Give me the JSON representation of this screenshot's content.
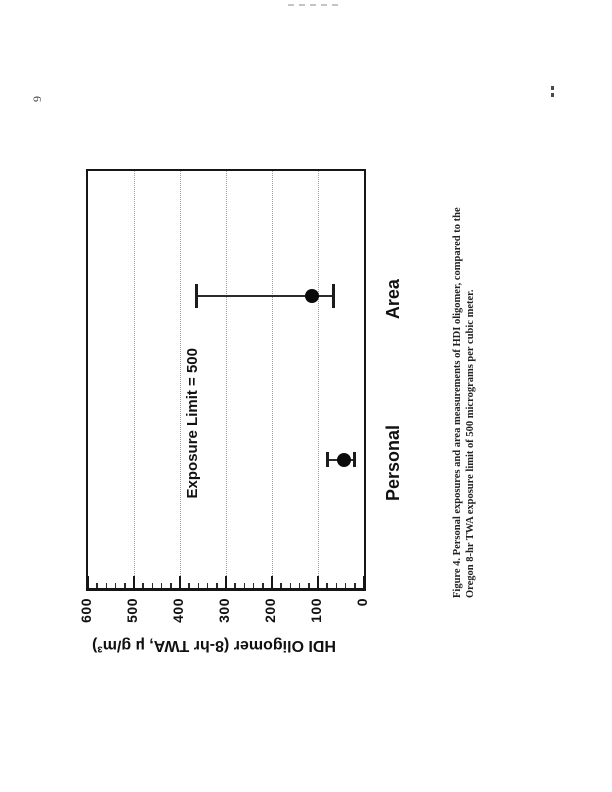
{
  "page": {
    "page_number": "9",
    "caption_line1": "Figure 4.  Personal exposures and area measurements of HDI oligomer, compared to the",
    "caption_line2": "Oregon 8-hr TWA exposure limit of 500 micrograms per cubic meter."
  },
  "chart_data": {
    "type": "scatter",
    "title": "",
    "categories": [
      "Personal",
      "Area"
    ],
    "series": [
      {
        "values": [
          44,
          112
        ],
        "error_low": [
          20,
          65
        ],
        "error_high": [
          80,
          365
        ]
      }
    ],
    "xlabel": "",
    "ylabel": "HDI Oligomer (8-hr TWA, µ g/m³)",
    "ylim": [
      0,
      600
    ],
    "yticks": [
      0,
      100,
      200,
      300,
      400,
      500,
      600
    ],
    "ytick_labels": [
      "0",
      "100",
      "200",
      "300",
      "400",
      "500",
      "600"
    ],
    "minor_tick_interval": 20,
    "annotation": "Exposure Limit = 500",
    "legend": "none",
    "grid": "horizontal dotted lines at each 100 units",
    "figure_rotation": "figure printed landscape, rotated 90 degrees CCW on portrait page"
  },
  "colors": {
    "ink": "#161616",
    "grid": "#9d9d9d",
    "paper": "#ffffff"
  }
}
